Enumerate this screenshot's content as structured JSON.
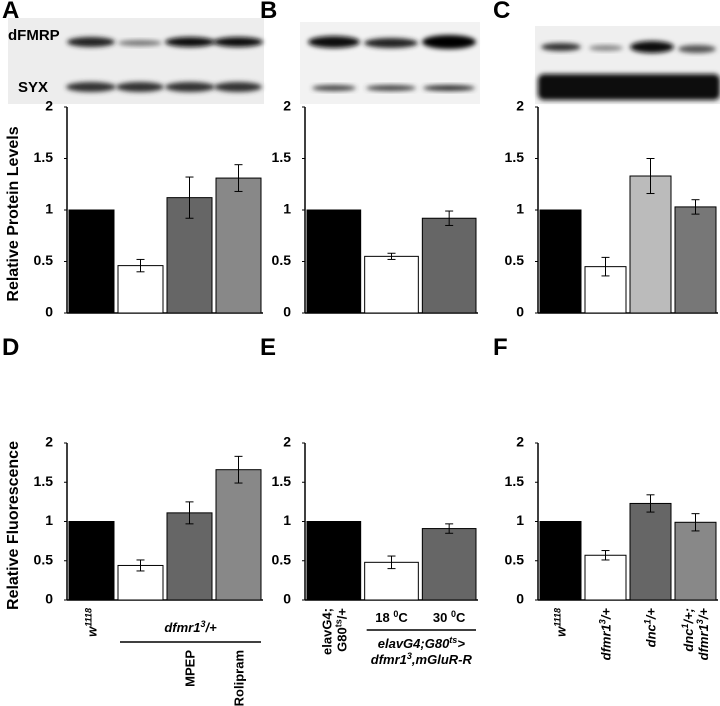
{
  "chart_data": [
    {
      "type": "bar",
      "panel": "A",
      "ylabel": "Relative Protein Levels",
      "blot_labels": [
        "dFMRP",
        "SYX"
      ],
      "values": [
        1,
        0.46,
        1.12,
        1.31
      ],
      "errors": [
        0,
        0.06,
        0.2,
        0.13
      ],
      "colors": [
        "#000000",
        "#ffffff",
        "#666666",
        "#888888"
      ],
      "ylim": [
        0,
        2
      ],
      "yticks": [
        0,
        0.5,
        1,
        1.5,
        2
      ]
    },
    {
      "type": "bar",
      "panel": "B",
      "values": [
        1,
        0.55,
        0.92
      ],
      "errors": [
        0,
        0.03,
        0.07
      ],
      "colors": [
        "#000000",
        "#ffffff",
        "#666666"
      ],
      "ylim": [
        0,
        2
      ],
      "yticks": [
        0,
        0.5,
        1,
        1.5,
        2
      ]
    },
    {
      "type": "bar",
      "panel": "C",
      "values": [
        1,
        0.45,
        1.33,
        1.03
      ],
      "errors": [
        0,
        0.09,
        0.17,
        0.07
      ],
      "colors": [
        "#000000",
        "#ffffff",
        "#bbbbbb",
        "#777777"
      ],
      "ylim": [
        0,
        2
      ],
      "yticks": [
        0,
        0.5,
        1,
        1.5,
        2
      ]
    },
    {
      "type": "bar",
      "panel": "D",
      "ylabel": "Relative Fluorescence",
      "categories": [
        [
          [
            "w",
            "1118"
          ]
        ],
        null,
        [
          [
            "MPEP"
          ]
        ],
        [
          [
            "Rolipram"
          ]
        ]
      ],
      "group_label": [
        [
          "dfmr1",
          "3",
          "/+"
        ]
      ],
      "values": [
        1,
        0.44,
        1.11,
        1.66
      ],
      "errors": [
        0,
        0.07,
        0.14,
        0.17
      ],
      "colors": [
        "#000000",
        "#ffffff",
        "#666666",
        "#888888"
      ],
      "ylim": [
        0,
        2
      ],
      "yticks": [
        0,
        0.5,
        1,
        1.5,
        2
      ]
    },
    {
      "type": "bar",
      "panel": "E",
      "categories": [
        [
          [
            "elavG4;"
          ],
          [
            "G80",
            "ts",
            "/+"
          ]
        ],
        [
          [
            "18 ",
            "0",
            "C"
          ]
        ],
        [
          [
            "30 ",
            "0",
            "C"
          ]
        ]
      ],
      "group_label": [
        [
          "elavG4;G80",
          "ts",
          ">"
        ],
        [
          "dfmr1",
          "3",
          ",mGluR-R"
        ]
      ],
      "values": [
        1,
        0.48,
        0.91
      ],
      "errors": [
        0,
        0.08,
        0.06
      ],
      "colors": [
        "#000000",
        "#ffffff",
        "#666666"
      ],
      "ylim": [
        0,
        2
      ],
      "yticks": [
        0,
        0.5,
        1,
        1.5,
        2
      ]
    },
    {
      "type": "bar",
      "panel": "F",
      "categories": [
        [
          [
            "w",
            "1118"
          ]
        ],
        [
          [
            "dfmr1",
            "3",
            "/+"
          ]
        ],
        [
          [
            "dnc",
            "1",
            "/+"
          ]
        ],
        [
          [
            "dnc",
            "1",
            "/+;"
          ],
          [
            "dfmr1",
            "3",
            "/+"
          ]
        ]
      ],
      "values": [
        1,
        0.57,
        1.23,
        0.99
      ],
      "errors": [
        0,
        0.06,
        0.11,
        0.11
      ],
      "colors": [
        "#000000",
        "#ffffff",
        "#666666",
        "#888888"
      ],
      "ylim": [
        0,
        2
      ],
      "yticks": [
        0,
        0.5,
        1,
        1.5,
        2
      ]
    }
  ]
}
